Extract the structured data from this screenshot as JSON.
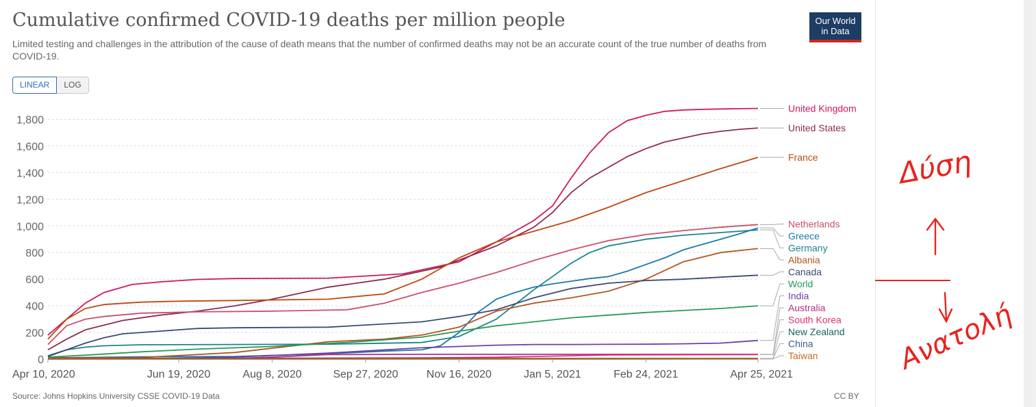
{
  "header": {
    "title": "Cumulative confirmed COVID-19 deaths per million people",
    "subtitle": "Limited testing and challenges in the attribution of the cause of death means that the number of confirmed deaths may not be an accurate count of the true number of deaths from COVID-19.",
    "logo_line1": "Our World",
    "logo_line2": "in Data"
  },
  "controls": {
    "linear_label": "LINEAR",
    "log_label": "LOG"
  },
  "footer": {
    "source": "Source: Johns Hopkins University CSSE COVID-19 Data",
    "license": "CC BY"
  },
  "annotation": {
    "up_text": "Δύση",
    "down_text": "Ανατολή",
    "color": "#e8231f"
  },
  "chart_data": {
    "type": "line",
    "title": "Cumulative confirmed COVID-19 deaths per million people",
    "xlabel": "",
    "ylabel": "",
    "x_start": "2020-04-10",
    "x_end": "2021-04-25",
    "total_days": 380,
    "ylim": [
      0,
      1900
    ],
    "yticks": [
      0,
      200,
      400,
      600,
      800,
      1000,
      1200,
      1400,
      1600,
      1800
    ],
    "ytick_labels": [
      "0",
      "200",
      "400",
      "600",
      "800",
      "1,000",
      "1,200",
      "1,400",
      "1,600",
      "1,800"
    ],
    "xticks": [
      0,
      70,
      120,
      170,
      220,
      270,
      320,
      380
    ],
    "xtick_labels": [
      "Apr 10, 2020",
      "Jun 19, 2020",
      "Aug 8, 2020",
      "Sep 27, 2020",
      "Nov 16, 2020",
      "Jan 5, 2021",
      "Feb 24, 2021",
      "Apr 25, 2021"
    ],
    "grid": "horizontal-dashed",
    "legend": "right-end-labels",
    "series": [
      {
        "name": "United Kingdom",
        "color": "#d0175f",
        "x": [
          0,
          10,
          20,
          30,
          45,
          60,
          80,
          100,
          150,
          190,
          220,
          240,
          260,
          270,
          280,
          290,
          300,
          310,
          320,
          330,
          340,
          350,
          360,
          370,
          380
        ],
        "values": [
          180,
          300,
          420,
          500,
          560,
          580,
          598,
          605,
          608,
          640,
          730,
          880,
          1040,
          1150,
          1360,
          1550,
          1700,
          1790,
          1830,
          1860,
          1870,
          1875,
          1878,
          1880,
          1882
        ]
      },
      {
        "name": "United States",
        "color": "#8c2c4f",
        "x": [
          0,
          10,
          20,
          40,
          60,
          80,
          100,
          120,
          150,
          180,
          210,
          240,
          260,
          270,
          280,
          290,
          300,
          310,
          320,
          330,
          340,
          350,
          360,
          370,
          380
        ],
        "values": [
          70,
          150,
          220,
          290,
          330,
          360,
          400,
          450,
          540,
          600,
          690,
          850,
          990,
          1100,
          1250,
          1360,
          1440,
          1520,
          1580,
          1630,
          1660,
          1690,
          1710,
          1725,
          1735
        ]
      },
      {
        "name": "France",
        "color": "#c0470e",
        "x": [
          0,
          10,
          20,
          30,
          50,
          70,
          100,
          150,
          180,
          200,
          220,
          240,
          260,
          280,
          300,
          320,
          340,
          360,
          380
        ],
        "values": [
          150,
          300,
          380,
          410,
          428,
          435,
          440,
          450,
          490,
          600,
          760,
          880,
          960,
          1040,
          1140,
          1250,
          1340,
          1430,
          1515
        ]
      },
      {
        "name": "Netherlands",
        "color": "#c8506a",
        "x": [
          0,
          10,
          20,
          30,
          50,
          80,
          120,
          160,
          180,
          200,
          220,
          240,
          260,
          280,
          300,
          320,
          340,
          360,
          380
        ],
        "values": [
          110,
          250,
          300,
          320,
          345,
          355,
          360,
          370,
          420,
          500,
          570,
          650,
          740,
          820,
          890,
          935,
          965,
          990,
          1010
        ]
      },
      {
        "name": "Germany",
        "color": "#1a858a",
        "x": [
          0,
          10,
          20,
          30,
          50,
          100,
          150,
          200,
          220,
          240,
          260,
          270,
          280,
          290,
          300,
          320,
          340,
          360,
          380
        ],
        "values": [
          25,
          70,
          90,
          100,
          108,
          110,
          112,
          125,
          170,
          300,
          520,
          620,
          720,
          800,
          850,
          900,
          930,
          950,
          970
        ]
      },
      {
        "name": "Greece",
        "color": "#1b79a8",
        "x": [
          0,
          50,
          100,
          150,
          180,
          200,
          210,
          220,
          230,
          240,
          250,
          260,
          270,
          280,
          290,
          300,
          310,
          320,
          330,
          340,
          350,
          360,
          370,
          380
        ],
        "values": [
          10,
          17,
          20,
          40,
          60,
          70,
          100,
          200,
          350,
          450,
          500,
          540,
          565,
          585,
          605,
          620,
          660,
          710,
          760,
          820,
          860,
          900,
          940,
          985
        ]
      },
      {
        "name": "Albania",
        "color": "#b4531e",
        "x": [
          0,
          50,
          100,
          150,
          180,
          200,
          220,
          240,
          260,
          280,
          300,
          320,
          340,
          360,
          380
        ],
        "values": [
          9,
          12,
          50,
          130,
          150,
          180,
          240,
          360,
          420,
          460,
          510,
          600,
          730,
          800,
          830
        ]
      },
      {
        "name": "Canada",
        "color": "#3b4a75",
        "x": [
          0,
          10,
          20,
          30,
          40,
          60,
          80,
          100,
          150,
          200,
          220,
          240,
          260,
          280,
          300,
          320,
          340,
          360,
          380
        ],
        "values": [
          20,
          70,
          120,
          160,
          190,
          210,
          230,
          235,
          240,
          280,
          320,
          370,
          460,
          530,
          570,
          590,
          600,
          615,
          630
        ]
      },
      {
        "name": "World",
        "color": "#27995a",
        "x": [
          0,
          20,
          50,
          80,
          120,
          160,
          200,
          220,
          240,
          260,
          280,
          300,
          320,
          340,
          360,
          380
        ],
        "values": [
          15,
          30,
          55,
          75,
          95,
          125,
          165,
          210,
          250,
          280,
          310,
          330,
          350,
          365,
          380,
          400
        ]
      },
      {
        "name": "India",
        "color": "#6e3fa6",
        "x": [
          0,
          50,
          100,
          150,
          200,
          220,
          240,
          260,
          280,
          300,
          320,
          340,
          360,
          370,
          380
        ],
        "values": [
          0,
          2,
          15,
          45,
          85,
          95,
          105,
          110,
          110,
          111,
          112,
          115,
          120,
          130,
          140
        ]
      },
      {
        "name": "Australia",
        "color": "#b22f83",
        "x": [
          0,
          100,
          120,
          150,
          200,
          380
        ],
        "values": [
          3,
          5,
          15,
          34,
          36,
          36
        ]
      },
      {
        "name": "South Korea",
        "color": "#e0316b",
        "x": [
          0,
          100,
          200,
          240,
          260,
          300,
          380
        ],
        "values": [
          4,
          6,
          9,
          14,
          20,
          31,
          34
        ]
      },
      {
        "name": "New Zealand",
        "color": "#17645b",
        "x": [
          0,
          50,
          380
        ],
        "values": [
          1,
          5,
          5
        ]
      },
      {
        "name": "China",
        "color": "#3a5e8c",
        "x": [
          0,
          10,
          380
        ],
        "values": [
          2,
          3,
          3
        ]
      },
      {
        "name": "Taiwan",
        "color": "#c86b2c",
        "x": [
          0,
          380
        ],
        "values": [
          0,
          0.5
        ]
      }
    ]
  }
}
